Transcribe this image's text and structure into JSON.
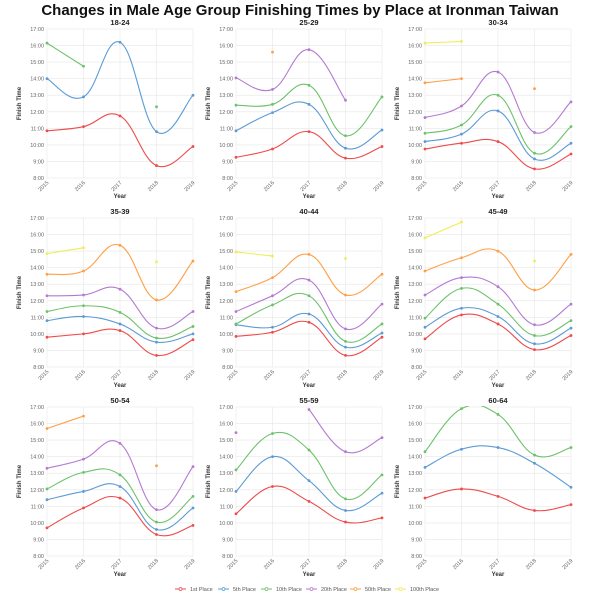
{
  "title": "Changes in Male Age Group Finishing Times by Place at Ironman Taiwan",
  "legend": [
    {
      "name": "1st Place",
      "color": "#ee4b4b"
    },
    {
      "name": "5th Place",
      "color": "#5b9bd5"
    },
    {
      "name": "10th Place",
      "color": "#6cc26a"
    },
    {
      "name": "20th Place",
      "color": "#b47ad1"
    },
    {
      "name": "50th Place",
      "color": "#ff9f45"
    },
    {
      "name": "100th Place",
      "color": "#eeee55"
    }
  ],
  "chart_data": [
    {
      "type": "line",
      "title": "18-24",
      "xlabel": "Year",
      "ylabel": "Finish Time",
      "x": [
        "2015",
        "2016",
        "2017",
        "2018",
        "2019"
      ],
      "ylim": [
        8,
        17
      ],
      "yticks": [
        "8:00",
        "9:00",
        "10:00",
        "11:00",
        "12:00",
        "13:00",
        "14:00",
        "15:00",
        "16:00",
        "17:00"
      ],
      "grid": true,
      "series": [
        {
          "name": "1st Place",
          "values": [
            10.85,
            11.1,
            11.75,
            8.75,
            9.9
          ]
        },
        {
          "name": "5th Place",
          "values": [
            14.0,
            12.9,
            16.2,
            10.8,
            13.0
          ]
        },
        {
          "name": "10th Place",
          "values": [
            16.15,
            14.75,
            null,
            12.3,
            null
          ]
        }
      ]
    },
    {
      "type": "line",
      "title": "25-29",
      "xlabel": "Year",
      "ylabel": "Finish Time",
      "x": [
        "2015",
        "2016",
        "2017",
        "2018",
        "2019"
      ],
      "ylim": [
        8,
        17
      ],
      "yticks": [
        "8:00",
        "9:00",
        "10:00",
        "11:00",
        "12:00",
        "13:00",
        "14:00",
        "15:00",
        "16:00",
        "17:00"
      ],
      "grid": true,
      "series": [
        {
          "name": "1st Place",
          "values": [
            9.25,
            9.75,
            10.8,
            9.2,
            9.9
          ]
        },
        {
          "name": "5th Place",
          "values": [
            10.85,
            11.95,
            12.45,
            9.8,
            10.9
          ]
        },
        {
          "name": "10th Place",
          "values": [
            12.4,
            12.45,
            13.6,
            10.55,
            12.9
          ]
        },
        {
          "name": "20th Place",
          "values": [
            14.05,
            13.35,
            15.75,
            12.7,
            null
          ]
        },
        {
          "name": "50th Place",
          "values": [
            null,
            15.6,
            null,
            null,
            null
          ]
        }
      ]
    },
    {
      "type": "line",
      "title": "30-34",
      "xlabel": "Year",
      "ylabel": "Finish Time",
      "x": [
        "2015",
        "2016",
        "2017",
        "2018",
        "2019"
      ],
      "ylim": [
        8,
        17
      ],
      "yticks": [
        "8:00",
        "9:00",
        "10:00",
        "11:00",
        "12:00",
        "13:00",
        "14:00",
        "15:00",
        "16:00",
        "17:00"
      ],
      "grid": true,
      "series": [
        {
          "name": "1st Place",
          "values": [
            9.75,
            10.1,
            10.2,
            8.55,
            9.45
          ]
        },
        {
          "name": "5th Place",
          "values": [
            10.2,
            10.65,
            12.05,
            9.15,
            10.1
          ]
        },
        {
          "name": "10th Place",
          "values": [
            10.7,
            11.2,
            13.0,
            9.5,
            11.1
          ]
        },
        {
          "name": "20th Place",
          "values": [
            11.65,
            12.35,
            14.4,
            10.75,
            12.6
          ]
        },
        {
          "name": "50th Place",
          "values": [
            13.75,
            14.0,
            null,
            13.4,
            null
          ]
        },
        {
          "name": "100th Place",
          "values": [
            16.15,
            16.25,
            null,
            null,
            null
          ]
        }
      ]
    },
    {
      "type": "line",
      "title": "35-39",
      "xlabel": "Year",
      "ylabel": "Finish Time",
      "x": [
        "2015",
        "2016",
        "2017",
        "2018",
        "2019"
      ],
      "ylim": [
        8,
        17
      ],
      "yticks": [
        "8:00",
        "9:00",
        "10:00",
        "11:00",
        "12:00",
        "13:00",
        "14:00",
        "15:00",
        "16:00",
        "17:00"
      ],
      "grid": true,
      "series": [
        {
          "name": "1st Place",
          "values": [
            9.8,
            10.0,
            10.2,
            8.7,
            9.65
          ]
        },
        {
          "name": "5th Place",
          "values": [
            10.8,
            11.05,
            10.6,
            9.5,
            10.0
          ]
        },
        {
          "name": "10th Place",
          "values": [
            11.35,
            11.7,
            11.3,
            9.75,
            10.45
          ]
        },
        {
          "name": "20th Place",
          "values": [
            12.3,
            12.35,
            12.7,
            10.35,
            11.35
          ]
        },
        {
          "name": "50th Place",
          "values": [
            13.6,
            13.8,
            15.35,
            12.05,
            14.4
          ]
        },
        {
          "name": "100th Place",
          "values": [
            14.85,
            15.2,
            null,
            14.35,
            null
          ]
        }
      ]
    },
    {
      "type": "line",
      "title": "40-44",
      "xlabel": "Year",
      "ylabel": "Finish Time",
      "x": [
        "2015",
        "2016",
        "2017",
        "2018",
        "2019"
      ],
      "ylim": [
        8,
        17
      ],
      "yticks": [
        "8:00",
        "9:00",
        "10:00",
        "11:00",
        "12:00",
        "13:00",
        "14:00",
        "15:00",
        "16:00",
        "17:00"
      ],
      "grid": true,
      "series": [
        {
          "name": "1st Place",
          "values": [
            9.85,
            10.1,
            10.7,
            8.7,
            9.8
          ]
        },
        {
          "name": "5th Place",
          "values": [
            10.55,
            10.4,
            11.2,
            9.2,
            10.05
          ]
        },
        {
          "name": "10th Place",
          "values": [
            10.6,
            11.75,
            12.3,
            9.55,
            10.6
          ]
        },
        {
          "name": "20th Place",
          "values": [
            11.35,
            12.3,
            13.25,
            10.3,
            11.8
          ]
        },
        {
          "name": "50th Place",
          "values": [
            12.55,
            13.4,
            14.8,
            12.35,
            13.6
          ]
        },
        {
          "name": "100th Place",
          "values": [
            14.95,
            14.7,
            null,
            14.55,
            null
          ]
        }
      ]
    },
    {
      "type": "line",
      "title": "45-49",
      "xlabel": "Year",
      "ylabel": "Finish Time",
      "x": [
        "2015",
        "2016",
        "2017",
        "2018",
        "2019"
      ],
      "ylim": [
        8,
        17
      ],
      "yticks": [
        "8:00",
        "9:00",
        "10:00",
        "11:00",
        "12:00",
        "13:00",
        "14:00",
        "15:00",
        "16:00",
        "17:00"
      ],
      "grid": true,
      "series": [
        {
          "name": "1st Place",
          "values": [
            9.7,
            11.15,
            10.6,
            9.05,
            9.9
          ]
        },
        {
          "name": "5th Place",
          "values": [
            10.4,
            11.55,
            11.05,
            9.4,
            10.35
          ]
        },
        {
          "name": "10th Place",
          "values": [
            10.95,
            12.75,
            11.8,
            9.9,
            10.8
          ]
        },
        {
          "name": "20th Place",
          "values": [
            12.35,
            13.4,
            12.85,
            10.55,
            11.8
          ]
        },
        {
          "name": "50th Place",
          "values": [
            13.8,
            14.6,
            15.0,
            12.65,
            14.8
          ]
        },
        {
          "name": "100th Place",
          "values": [
            15.8,
            16.75,
            null,
            14.4,
            null
          ]
        }
      ]
    },
    {
      "type": "line",
      "title": "50-54",
      "xlabel": "Year",
      "ylabel": "Finish Time",
      "x": [
        "2015",
        "2016",
        "2017",
        "2018",
        "2019"
      ],
      "ylim": [
        8,
        17
      ],
      "yticks": [
        "8:00",
        "9:00",
        "10:00",
        "11:00",
        "12:00",
        "13:00",
        "14:00",
        "15:00",
        "16:00",
        "17:00"
      ],
      "grid": true,
      "series": [
        {
          "name": "1st Place",
          "values": [
            9.7,
            10.9,
            11.5,
            9.3,
            9.85
          ]
        },
        {
          "name": "5th Place",
          "values": [
            11.4,
            11.9,
            12.2,
            9.6,
            10.9
          ]
        },
        {
          "name": "10th Place",
          "values": [
            12.05,
            13.05,
            12.9,
            10.05,
            11.6
          ]
        },
        {
          "name": "20th Place",
          "values": [
            13.3,
            13.85,
            14.8,
            10.8,
            13.4
          ]
        },
        {
          "name": "50th Place",
          "values": [
            15.7,
            16.45,
            null,
            13.45,
            null
          ]
        }
      ]
    },
    {
      "type": "line",
      "title": "55-59",
      "xlabel": "Year",
      "ylabel": "Finish Time",
      "x": [
        "2015",
        "2016",
        "2017",
        "2018",
        "2019"
      ],
      "ylim": [
        8,
        17
      ],
      "yticks": [
        "8:00",
        "9:00",
        "10:00",
        "11:00",
        "12:00",
        "13:00",
        "14:00",
        "15:00",
        "16:00",
        "17:00"
      ],
      "grid": true,
      "series": [
        {
          "name": "1st Place",
          "values": [
            10.55,
            12.2,
            11.3,
            10.05,
            10.3
          ]
        },
        {
          "name": "5th Place",
          "values": [
            11.9,
            14.0,
            12.55,
            10.75,
            11.8
          ]
        },
        {
          "name": "10th Place",
          "values": [
            13.2,
            15.4,
            14.4,
            11.45,
            12.9
          ]
        },
        {
          "name": "20th Place",
          "values": [
            15.45,
            null,
            16.85,
            14.3,
            15.15
          ]
        }
      ]
    },
    {
      "type": "line",
      "title": "60-64",
      "xlabel": "Year",
      "ylabel": "Finish Time",
      "x": [
        "2015",
        "2016",
        "2017",
        "2018",
        "2019"
      ],
      "ylim": [
        8,
        17
      ],
      "yticks": [
        "8:00",
        "9:00",
        "10:00",
        "11:00",
        "12:00",
        "13:00",
        "14:00",
        "15:00",
        "16:00",
        "17:00"
      ],
      "grid": true,
      "series": [
        {
          "name": "1st Place",
          "values": [
            11.5,
            12.05,
            11.6,
            10.75,
            11.1
          ]
        },
        {
          "name": "5th Place",
          "values": [
            13.35,
            14.45,
            14.55,
            13.6,
            12.15
          ]
        },
        {
          "name": "10th Place",
          "values": [
            14.3,
            16.9,
            16.55,
            14.1,
            14.55
          ]
        }
      ]
    }
  ]
}
